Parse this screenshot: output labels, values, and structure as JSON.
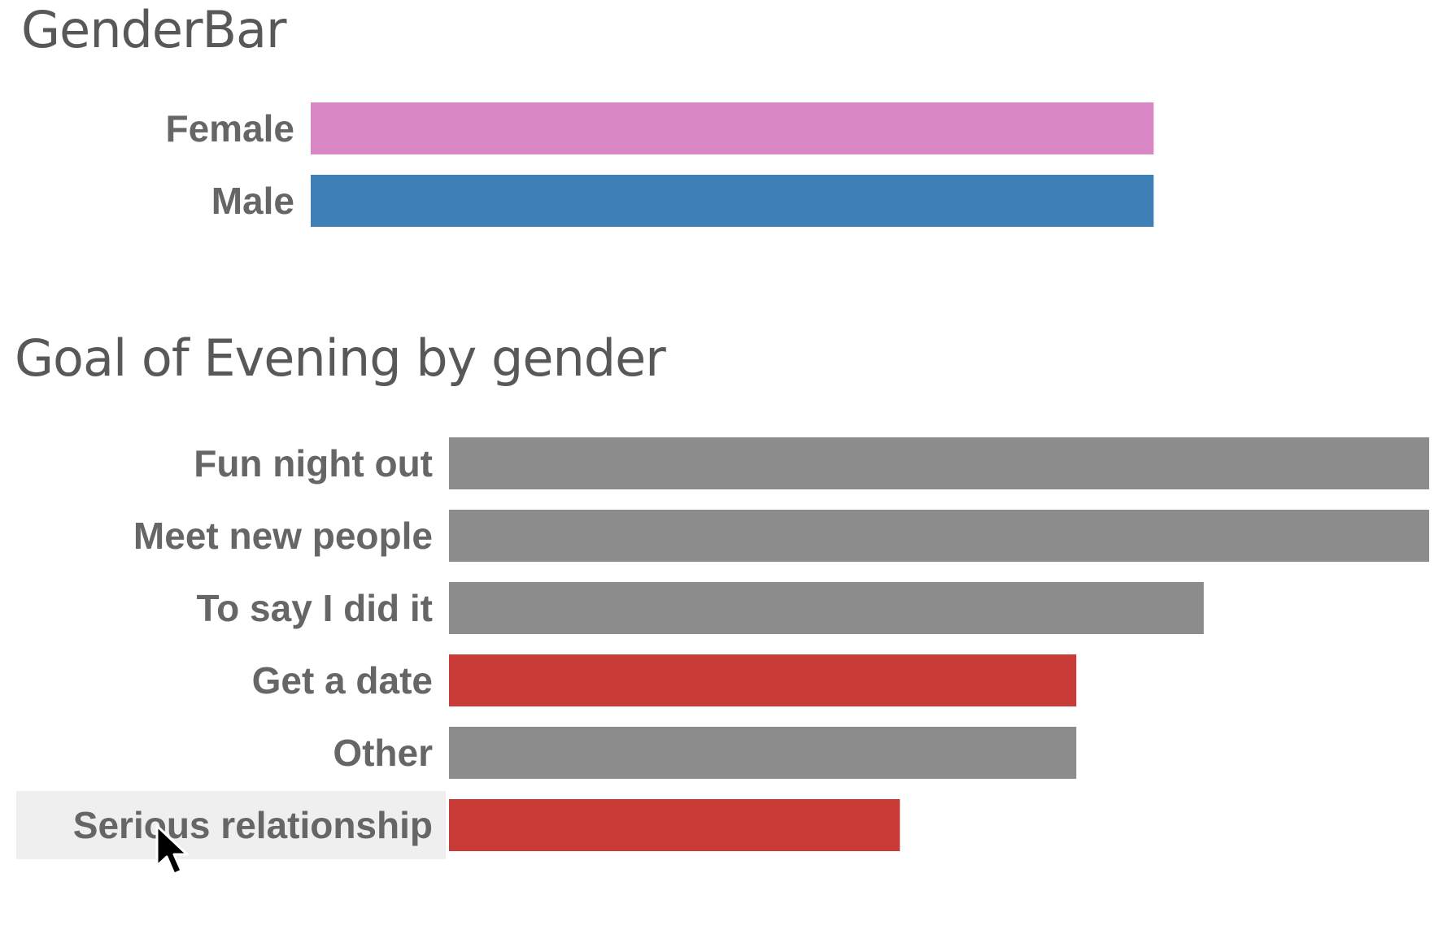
{
  "chart_data": [
    {
      "type": "bar",
      "orientation": "horizontal",
      "title": "GenderBar",
      "categories": [
        "Female",
        "Male"
      ],
      "values": [
        86,
        86
      ],
      "colors": [
        "#d986c4",
        "#3f7fb8"
      ],
      "xlim": [
        0,
        100
      ],
      "grid": false,
      "legend": "none"
    },
    {
      "type": "bar",
      "orientation": "horizontal",
      "title": "Goal of Evening by gender",
      "categories": [
        "Fun night out",
        "Meet new people",
        "To say I did it",
        "Get a date",
        "Other",
        "Serious relationship"
      ],
      "values": [
        100,
        100,
        77,
        64,
        64,
        46
      ],
      "colors": [
        "#8c8c8c",
        "#8c8c8c",
        "#8c8c8c",
        "#c93b37",
        "#8c8c8c",
        "#c93b37"
      ],
      "highlighted_category": "Serious relationship",
      "xlim": [
        0,
        100
      ],
      "grid": false,
      "legend": "none"
    }
  ]
}
